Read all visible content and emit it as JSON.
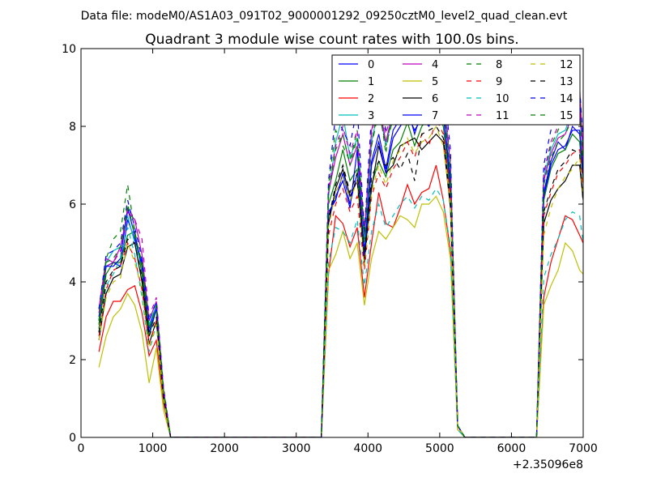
{
  "chart_data": {
    "type": "line",
    "suptitle": "Data file: modeM0/AS1A03_091T02_9000001292_09250cztM0_level2_quad_clean.evt",
    "title": "Quadrant 3 module wise count rates with 100.0s bins.",
    "xlabel": "",
    "ylabel": "",
    "x_offset_label": "+2.35096e8",
    "xlim": [
      0,
      7000
    ],
    "ylim": [
      0,
      10
    ],
    "xticks": [
      "0",
      "1000",
      "2000",
      "3000",
      "4000",
      "5000",
      "6000",
      "7000"
    ],
    "yticks": [
      "0",
      "2",
      "4",
      "6",
      "8",
      "10"
    ],
    "legend_position": "top-right",
    "x": [
      250,
      350,
      450,
      550,
      650,
      750,
      850,
      950,
      1050,
      1150,
      1250,
      1350,
      3350,
      3450,
      3550,
      3650,
      3750,
      3850,
      3950,
      4050,
      4150,
      4250,
      4350,
      4450,
      4550,
      4650,
      4750,
      4850,
      4950,
      5050,
      5150,
      5250,
      5350,
      6350,
      6450,
      6550,
      6650,
      6750,
      6850,
      6950,
      7000
    ],
    "series": [
      {
        "name": "0",
        "color": "#0000ff",
        "dash": "solid",
        "values": [
          3.1,
          4.4,
          4.5,
          4.4,
          5.6,
          5.1,
          4.5,
          2.8,
          3.4,
          1.2,
          0,
          0,
          0,
          5.8,
          6.1,
          6.8,
          6.0,
          6.8,
          4.8,
          7.1,
          7.8,
          6.9,
          7.9,
          8.2,
          8.5,
          7.8,
          8.4,
          8.1,
          8.8,
          8.4,
          6.6,
          0.3,
          0,
          0,
          6.3,
          7.1,
          7.6,
          7.4,
          8.0,
          7.8,
          6.8
        ]
      },
      {
        "name": "1",
        "color": "#008000",
        "dash": "solid",
        "values": [
          2.8,
          4.2,
          4.5,
          4.5,
          5.2,
          5.3,
          4.2,
          2.6,
          3.3,
          1.1,
          0,
          0,
          0,
          6.0,
          6.6,
          7.4,
          6.6,
          6.9,
          4.7,
          6.5,
          7.1,
          6.7,
          7.4,
          7.6,
          8.1,
          7.5,
          8.0,
          8.2,
          8.4,
          8.0,
          6.3,
          0.3,
          0,
          0,
          6.1,
          6.9,
          7.3,
          7.4,
          7.8,
          7.6,
          6.6
        ]
      },
      {
        "name": "2",
        "color": "#ff0000",
        "dash": "solid",
        "values": [
          2.2,
          3.1,
          3.5,
          3.5,
          3.8,
          3.9,
          3.2,
          2.1,
          2.5,
          0.9,
          0,
          0,
          0,
          4.2,
          5.7,
          5.5,
          4.9,
          5.4,
          3.6,
          5.0,
          6.3,
          5.5,
          5.4,
          5.9,
          6.5,
          6.0,
          6.3,
          6.4,
          7.0,
          6.1,
          4.8,
          0.2,
          0,
          0,
          3.6,
          4.5,
          5.1,
          5.7,
          5.6,
          5.2,
          5.0
        ]
      },
      {
        "name": "3",
        "color": "#00bfbf",
        "dash": "solid",
        "values": [
          3.0,
          4.5,
          4.8,
          4.9,
          5.7,
          5.0,
          4.4,
          2.9,
          3.4,
          1.2,
          0,
          0,
          0,
          6.2,
          7.6,
          8.3,
          7.2,
          7.7,
          5.0,
          7.6,
          8.5,
          7.5,
          8.3,
          8.5,
          8.8,
          8.3,
          8.5,
          8.6,
          9.0,
          8.8,
          6.9,
          0.3,
          0,
          0,
          6.7,
          7.4,
          7.8,
          7.9,
          8.4,
          8.3,
          7.2
        ]
      },
      {
        "name": "4",
        "color": "#bf00bf",
        "dash": "solid",
        "values": [
          3.3,
          4.6,
          4.5,
          4.9,
          5.8,
          5.6,
          4.7,
          3.0,
          3.5,
          1.2,
          0,
          0,
          0,
          6.3,
          7.2,
          7.8,
          7.0,
          7.5,
          5.2,
          7.9,
          8.6,
          7.6,
          8.4,
          8.8,
          9.1,
          8.6,
          8.9,
          9.0,
          9.2,
          8.8,
          7.0,
          0.3,
          0,
          0,
          6.6,
          7.3,
          7.7,
          7.8,
          8.3,
          8.7,
          7.0
        ]
      },
      {
        "name": "5",
        "color": "#bfbf00",
        "dash": "solid",
        "values": [
          1.8,
          2.6,
          3.1,
          3.3,
          3.7,
          3.4,
          2.7,
          1.4,
          2.3,
          0.7,
          0,
          0,
          0,
          4.3,
          4.7,
          5.3,
          4.6,
          5.0,
          3.4,
          4.6,
          5.3,
          5.1,
          5.4,
          5.7,
          5.6,
          5.4,
          6.0,
          6.0,
          6.2,
          5.8,
          4.6,
          0.2,
          0,
          0,
          3.4,
          3.9,
          4.3,
          5.0,
          4.8,
          4.3,
          4.2
        ]
      },
      {
        "name": "6",
        "color": "#000000",
        "dash": "solid",
        "values": [
          2.5,
          3.7,
          4.1,
          4.2,
          4.9,
          5.0,
          4.0,
          2.4,
          3.0,
          1.0,
          0,
          0,
          0,
          5.5,
          6.4,
          6.9,
          6.2,
          6.6,
          4.5,
          6.4,
          7.5,
          6.8,
          7.0,
          7.5,
          7.6,
          7.7,
          7.4,
          7.6,
          7.8,
          7.6,
          5.9,
          0.3,
          0,
          0,
          5.5,
          6.1,
          6.4,
          6.6,
          7.0,
          7.0,
          6.1
        ]
      },
      {
        "name": "7",
        "color": "#0000ff",
        "dash": "solid",
        "values": [
          3.0,
          4.4,
          4.4,
          4.6,
          5.9,
          5.2,
          4.4,
          2.7,
          3.3,
          1.1,
          0,
          0,
          0,
          5.7,
          6.2,
          6.6,
          5.9,
          7.4,
          4.6,
          7.0,
          7.6,
          6.8,
          7.7,
          8.0,
          8.3,
          7.9,
          8.2,
          8.0,
          8.6,
          8.3,
          6.5,
          0.3,
          0,
          0,
          6.2,
          7.0,
          7.4,
          7.5,
          7.9,
          7.9,
          6.7
        ]
      },
      {
        "name": "8",
        "color": "#008000",
        "dash": "dashed",
        "values": [
          2.9,
          4.6,
          5.1,
          5.3,
          6.5,
          5.3,
          4.4,
          2.8,
          3.4,
          1.2,
          0,
          0,
          0,
          6.5,
          7.9,
          7.5,
          7.1,
          7.9,
          5.2,
          7.5,
          8.6,
          7.3,
          8.6,
          8.8,
          9.1,
          8.3,
          9.2,
          8.5,
          9.4,
          8.8,
          7.0,
          0.3,
          0,
          0,
          6.8,
          7.5,
          7.9,
          8.3,
          8.5,
          8.4,
          7.2
        ]
      },
      {
        "name": "9",
        "color": "#ff0000",
        "dash": "dashed",
        "values": [
          2.6,
          3.8,
          4.3,
          4.4,
          5.0,
          4.6,
          3.8,
          2.4,
          3.0,
          1.0,
          0,
          0,
          0,
          5.2,
          6.0,
          6.4,
          5.8,
          6.2,
          4.3,
          6.2,
          6.8,
          6.4,
          6.9,
          7.2,
          7.6,
          7.2,
          7.8,
          7.5,
          8.2,
          7.8,
          6.2,
          0.3,
          0,
          0,
          5.7,
          6.3,
          6.8,
          7.0,
          7.3,
          7.4,
          6.4
        ]
      },
      {
        "name": "10",
        "color": "#00bfbf",
        "dash": "dashed",
        "values": [
          2.7,
          3.9,
          4.2,
          4.6,
          5.4,
          4.7,
          3.6,
          2.2,
          2.9,
          1.0,
          0,
          0,
          0,
          4.5,
          5.4,
          5.3,
          5.0,
          5.6,
          3.9,
          5.3,
          6.0,
          5.4,
          5.7,
          6.0,
          6.2,
          5.9,
          6.2,
          6.1,
          6.4,
          6.1,
          4.9,
          0.2,
          0,
          0,
          4.1,
          4.7,
          5.1,
          5.6,
          5.8,
          5.7,
          5.0
        ]
      },
      {
        "name": "11",
        "color": "#bf00bf",
        "dash": "dashed",
        "values": [
          3.2,
          4.4,
          4.5,
          4.8,
          5.9,
          5.6,
          5.1,
          3.1,
          3.6,
          1.3,
          0,
          0,
          0,
          6.4,
          7.5,
          8.0,
          7.3,
          7.9,
          5.3,
          7.8,
          8.7,
          7.8,
          8.5,
          8.7,
          9.0,
          8.5,
          9.1,
          8.8,
          9.2,
          8.9,
          7.1,
          0.3,
          0,
          0,
          6.8,
          7.6,
          8.0,
          8.2,
          8.6,
          9.0,
          7.3
        ]
      },
      {
        "name": "12",
        "color": "#bfbf00",
        "dash": "dashed",
        "values": [
          2.5,
          3.6,
          4.0,
          4.1,
          5.0,
          4.5,
          3.8,
          2.3,
          2.9,
          1.0,
          0,
          0,
          0,
          5.4,
          6.3,
          6.7,
          6.1,
          6.6,
          4.4,
          6.3,
          7.0,
          6.5,
          7.1,
          7.4,
          7.7,
          7.3,
          7.6,
          7.7,
          8.0,
          7.5,
          6.0,
          0.3,
          0,
          0,
          5.2,
          5.9,
          6.4,
          6.7,
          6.9,
          7.2,
          6.2
        ]
      },
      {
        "name": "13",
        "color": "#000000",
        "dash": "dashed",
        "values": [
          2.7,
          4.0,
          4.3,
          4.4,
          5.1,
          5.0,
          4.1,
          2.6,
          3.1,
          1.0,
          0,
          0,
          0,
          5.6,
          6.5,
          7.0,
          6.3,
          6.8,
          4.6,
          6.7,
          7.1,
          7.0,
          7.2,
          6.9,
          7.3,
          6.6,
          7.8,
          7.9,
          8.0,
          7.7,
          6.1,
          0.3,
          0,
          0,
          5.8,
          6.4,
          6.9,
          7.1,
          7.4,
          7.3,
          6.0
        ]
      },
      {
        "name": "14",
        "color": "#0000ff",
        "dash": "dashed",
        "values": [
          3.3,
          4.7,
          4.8,
          5.0,
          6.1,
          5.4,
          4.6,
          3.0,
          3.5,
          1.2,
          0,
          0,
          0,
          6.6,
          8.3,
          7.9,
          7.5,
          8.5,
          5.3,
          8.3,
          9.0,
          7.9,
          8.8,
          9.1,
          9.3,
          9.0,
          9.7,
          9.1,
          9.6,
          9.2,
          7.4,
          0.3,
          0,
          0,
          7.0,
          7.9,
          8.4,
          8.6,
          8.9,
          9.0,
          7.6
        ]
      },
      {
        "name": "15",
        "color": "#008000",
        "dash": "dashed",
        "values": [
          3.0,
          4.5,
          4.6,
          4.9,
          6.0,
          5.2,
          4.5,
          2.8,
          3.4,
          1.2,
          0,
          0,
          0,
          6.3,
          7.4,
          7.8,
          7.0,
          7.7,
          5.0,
          7.5,
          8.4,
          7.5,
          8.2,
          8.5,
          8.8,
          8.3,
          8.8,
          8.6,
          9.0,
          8.6,
          6.8,
          0.3,
          0,
          0,
          6.5,
          7.2,
          7.6,
          7.8,
          8.2,
          8.3,
          7.0
        ]
      }
    ]
  }
}
